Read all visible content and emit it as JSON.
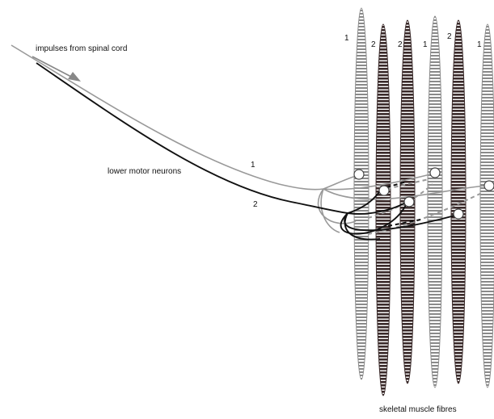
{
  "labels": {
    "impulses": "impulses from spinal cord",
    "neurons": "lower motor neurons",
    "fibres": "skeletal muscle fibres",
    "neuron_1": "1",
    "neuron_2": "2"
  },
  "fibres": [
    {
      "id": "f1",
      "unit": "1",
      "shade": "grey"
    },
    {
      "id": "f2",
      "unit": "2",
      "shade": "dark"
    },
    {
      "id": "f3",
      "unit": "2",
      "shade": "dark"
    },
    {
      "id": "f4",
      "unit": "1",
      "shade": "grey"
    },
    {
      "id": "f5",
      "unit": "2",
      "shade": "dark"
    },
    {
      "id": "f6",
      "unit": "1",
      "shade": "grey"
    }
  ],
  "colors": {
    "neuron_1": "#999999",
    "neuron_2": "#111111",
    "fibre_grey": "#8a8a8a",
    "fibre_dark": "#3a2a2a",
    "junction_fill": "#ffffff"
  }
}
